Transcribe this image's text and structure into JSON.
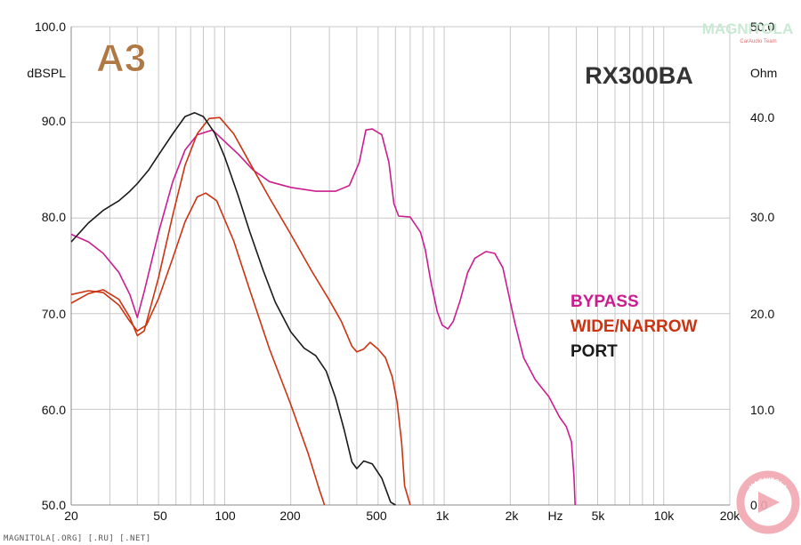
{
  "chart_data": {
    "type": "line",
    "title": "RX300BA",
    "xlabel": "Hz",
    "ylabel": "dBSPL",
    "ylabel_right": "Ohm",
    "xscale": "log",
    "xlim": [
      20,
      20000
    ],
    "ylim": [
      50,
      100
    ],
    "ylim_right": [
      0,
      50
    ],
    "grid": true,
    "legend_position": "center-right",
    "x_ticks": [
      "20",
      "50",
      "100",
      "200",
      "500",
      "1k",
      "2k",
      "Hz",
      "5k",
      "10k",
      "20k"
    ],
    "y_ticks_left": [
      "100.0",
      "90.0",
      "80.0",
      "70.0",
      "60.0",
      "50.0"
    ],
    "y_ticks_right": [
      "50.0",
      "40.0",
      "30.0",
      "20.0",
      "10.0",
      "0.0"
    ],
    "legend": [
      "BYPASS",
      "WIDE/NARROW",
      "PORT"
    ],
    "series": [
      {
        "name": "BYPASS",
        "color": "#cc1d8f",
        "points": [
          [
            20,
            78.3
          ],
          [
            24,
            77.5
          ],
          [
            28,
            76.3
          ],
          [
            33,
            74.3
          ],
          [
            37,
            72
          ],
          [
            40,
            69.6
          ],
          [
            43,
            72.3
          ],
          [
            50,
            78.5
          ],
          [
            58,
            83.8
          ],
          [
            66,
            87.1
          ],
          [
            75,
            88.7
          ],
          [
            88,
            89.2
          ],
          [
            100,
            88
          ],
          [
            115,
            86.7
          ],
          [
            135,
            85
          ],
          [
            160,
            83.8
          ],
          [
            200,
            83.2
          ],
          [
            260,
            82.8
          ],
          [
            320,
            82.8
          ],
          [
            370,
            83.4
          ],
          [
            410,
            85.8
          ],
          [
            440,
            89.2
          ],
          [
            470,
            89.3
          ],
          [
            520,
            88.7
          ],
          [
            560,
            85.8
          ],
          [
            590,
            81.5
          ],
          [
            620,
            80.2
          ],
          [
            700,
            80.1
          ],
          [
            780,
            78.5
          ],
          [
            820,
            76.7
          ],
          [
            870,
            73.3
          ],
          [
            930,
            70.2
          ],
          [
            980,
            68.8
          ],
          [
            1040,
            68.4
          ],
          [
            1100,
            69.2
          ],
          [
            1180,
            71.3
          ],
          [
            1280,
            74.3
          ],
          [
            1380,
            75.8
          ],
          [
            1550,
            76.5
          ],
          [
            1700,
            76.3
          ],
          [
            1850,
            74.8
          ],
          [
            1950,
            72.4
          ],
          [
            2100,
            69
          ],
          [
            2300,
            65.4
          ],
          [
            2600,
            63.1
          ],
          [
            3000,
            61.3
          ],
          [
            3350,
            59.2
          ],
          [
            3600,
            58.2
          ],
          [
            3800,
            56.6
          ],
          [
            3900,
            53
          ],
          [
            3950,
            50
          ]
        ]
      },
      {
        "name": "WIDE",
        "color": "#cc3311",
        "points": [
          [
            20,
            71.1
          ],
          [
            24,
            72.1
          ],
          [
            28,
            72.5
          ],
          [
            33,
            71.5
          ],
          [
            37,
            69.6
          ],
          [
            40,
            67.7
          ],
          [
            43,
            68.2
          ],
          [
            50,
            73.8
          ],
          [
            58,
            80.3
          ],
          [
            66,
            85.5
          ],
          [
            75,
            88.8
          ],
          [
            85,
            90.4
          ],
          [
            95,
            90.5
          ],
          [
            110,
            88.8
          ],
          [
            130,
            85.8
          ],
          [
            160,
            82.1
          ],
          [
            200,
            78.3
          ],
          [
            250,
            74.4
          ],
          [
            300,
            71.4
          ],
          [
            340,
            69.2
          ],
          [
            380,
            66.6
          ],
          [
            400,
            66
          ],
          [
            430,
            66.3
          ],
          [
            460,
            67
          ],
          [
            500,
            66.3
          ],
          [
            540,
            65.4
          ],
          [
            580,
            63.4
          ],
          [
            610,
            60.8
          ],
          [
            640,
            56.5
          ],
          [
            660,
            52
          ],
          [
            700,
            50
          ]
        ]
      },
      {
        "name": "NARROW",
        "color": "#cc3311",
        "points": [
          [
            20,
            72
          ],
          [
            24,
            72.4
          ],
          [
            28,
            72.2
          ],
          [
            33,
            70.9
          ],
          [
            37,
            69.2
          ],
          [
            40,
            68.2
          ],
          [
            44,
            68.8
          ],
          [
            50,
            71.6
          ],
          [
            58,
            75.8
          ],
          [
            66,
            79.6
          ],
          [
            75,
            82.2
          ],
          [
            82,
            82.6
          ],
          [
            92,
            81.8
          ],
          [
            110,
            77.6
          ],
          [
            130,
            72.5
          ],
          [
            160,
            66.3
          ],
          [
            200,
            60.5
          ],
          [
            240,
            55.4
          ],
          [
            270,
            51.6
          ],
          [
            285,
            50
          ]
        ]
      },
      {
        "name": "PORT",
        "color": "#1a1a1a",
        "points": [
          [
            20,
            77.5
          ],
          [
            24,
            79.5
          ],
          [
            28,
            80.8
          ],
          [
            33,
            81.8
          ],
          [
            37,
            82.8
          ],
          [
            40,
            83.6
          ],
          [
            45,
            85
          ],
          [
            50,
            86.6
          ],
          [
            58,
            88.8
          ],
          [
            66,
            90.6
          ],
          [
            73,
            91
          ],
          [
            80,
            90.6
          ],
          [
            90,
            88.9
          ],
          [
            100,
            86.4
          ],
          [
            115,
            82.4
          ],
          [
            130,
            78.6
          ],
          [
            150,
            74.5
          ],
          [
            170,
            71.2
          ],
          [
            200,
            68.1
          ],
          [
            230,
            66.4
          ],
          [
            260,
            65.6
          ],
          [
            290,
            64
          ],
          [
            320,
            61.2
          ],
          [
            350,
            57.9
          ],
          [
            380,
            54.5
          ],
          [
            400,
            53.8
          ],
          [
            430,
            54.6
          ],
          [
            470,
            54.3
          ],
          [
            520,
            52.8
          ],
          [
            570,
            50.3
          ],
          [
            600,
            50
          ]
        ]
      }
    ]
  },
  "branding": {
    "logo": "A3",
    "watermark_top": "MAGNITOLA",
    "watermark_team": "CarAudio Team",
    "watermark_bottom": "MAGNITOLA",
    "footer": "MAGNITOLA[.ORG] [.RU] [.NET]"
  },
  "colors": {
    "bypass": "#cc1d8f",
    "wide_narrow": "#cc3311",
    "port": "#1a1a1a",
    "grid": "#c8c8c8"
  }
}
